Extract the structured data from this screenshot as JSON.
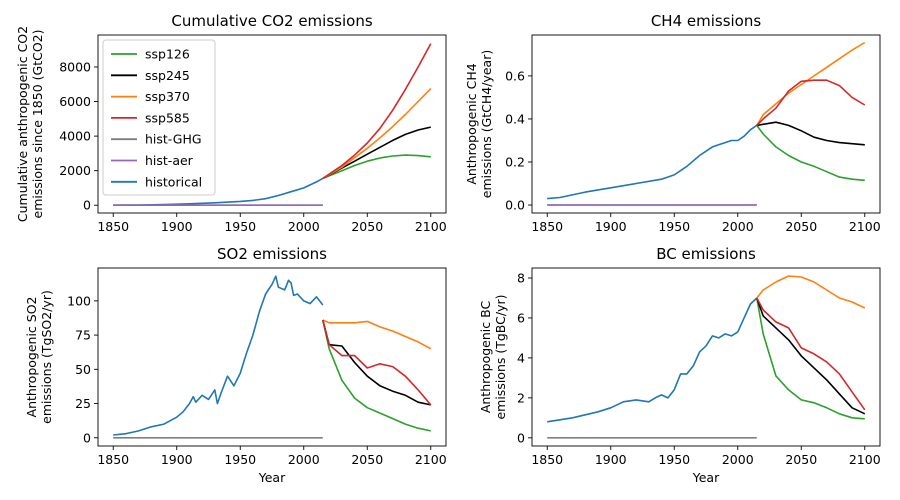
{
  "colors": {
    "ssp126": "#2ca02c",
    "ssp245": "#000000",
    "ssp370": "#ff7f0e",
    "ssp585": "#d62728",
    "hist-GHG": "#7f7f7f",
    "hist-aer": "#9467bd",
    "historical": "#1f77b4"
  },
  "legend": [
    "ssp126",
    "ssp245",
    "ssp370",
    "ssp585",
    "hist-GHG",
    "hist-aer",
    "historical"
  ],
  "chart_data": [
    {
      "id": "co2",
      "type": "line",
      "title": "Cumulative CO2 emissions",
      "xlabel": "",
      "ylabel": [
        "Cumulative anthropogenic CO2",
        "emissions since 1850 (GtCO2)"
      ],
      "xlim": [
        1838,
        2112
      ],
      "ylim": [
        -450,
        9850
      ],
      "xticks": [
        1850,
        1900,
        1950,
        2000,
        2050,
        2100
      ],
      "yticks": [
        0,
        2000,
        4000,
        6000,
        8000
      ],
      "legend_position": "top-left",
      "series": [
        {
          "name": "historical",
          "x": [
            1850,
            1870,
            1890,
            1910,
            1930,
            1950,
            1960,
            1970,
            1980,
            1990,
            2000,
            2010,
            2015
          ],
          "y": [
            0,
            15,
            40,
            85,
            140,
            220,
            280,
            380,
            560,
            780,
            1000,
            1350,
            1550
          ]
        },
        {
          "name": "hist-GHG",
          "x": [
            1850,
            2015
          ],
          "y": [
            0,
            0
          ]
        },
        {
          "name": "hist-aer",
          "x": [
            1850,
            2015
          ],
          "y": [
            0,
            0
          ]
        },
        {
          "name": "ssp126",
          "x": [
            2015,
            2030,
            2040,
            2050,
            2060,
            2070,
            2080,
            2090,
            2100
          ],
          "y": [
            1550,
            2000,
            2300,
            2550,
            2730,
            2850,
            2900,
            2870,
            2800
          ]
        },
        {
          "name": "ssp245",
          "x": [
            2015,
            2030,
            2040,
            2050,
            2060,
            2070,
            2080,
            2090,
            2100
          ],
          "y": [
            1550,
            2150,
            2550,
            2950,
            3350,
            3750,
            4100,
            4350,
            4520
          ]
        },
        {
          "name": "ssp370",
          "x": [
            2015,
            2030,
            2040,
            2050,
            2060,
            2070,
            2080,
            2090,
            2100
          ],
          "y": [
            1550,
            2200,
            2750,
            3300,
            3900,
            4550,
            5250,
            6000,
            6750
          ]
        },
        {
          "name": "ssp585",
          "x": [
            2015,
            2030,
            2040,
            2050,
            2060,
            2070,
            2080,
            2090,
            2100
          ],
          "y": [
            1550,
            2300,
            2900,
            3600,
            4450,
            5500,
            6700,
            8000,
            9350
          ]
        }
      ]
    },
    {
      "id": "ch4",
      "type": "line",
      "title": "CH4 emissions",
      "xlabel": "",
      "ylabel": [
        "Anthropogenic CH4",
        "emissions (GtCH4/year)"
      ],
      "xlim": [
        1838,
        2112
      ],
      "ylim": [
        -0.037,
        0.79
      ],
      "xticks": [
        1850,
        1900,
        1950,
        2000,
        2050,
        2100
      ],
      "yticks": [
        0.0,
        0.2,
        0.4,
        0.6
      ],
      "yticklabels": [
        "0.0",
        "0.2",
        "0.4",
        "0.6"
      ],
      "series": [
        {
          "name": "historical",
          "x": [
            1850,
            1860,
            1880,
            1900,
            1920,
            1940,
            1950,
            1960,
            1970,
            1975,
            1980,
            1985,
            1990,
            1995,
            2000,
            2005,
            2010,
            2015
          ],
          "y": [
            0.03,
            0.035,
            0.06,
            0.08,
            0.1,
            0.12,
            0.14,
            0.18,
            0.23,
            0.25,
            0.27,
            0.28,
            0.29,
            0.3,
            0.3,
            0.32,
            0.35,
            0.37
          ]
        },
        {
          "name": "hist-GHG",
          "x": [
            1850,
            2015
          ],
          "y": [
            0,
            0
          ]
        },
        {
          "name": "hist-aer",
          "x": [
            1850,
            2015
          ],
          "y": [
            0,
            0
          ]
        },
        {
          "name": "ssp126",
          "x": [
            2015,
            2020,
            2030,
            2040,
            2050,
            2060,
            2070,
            2080,
            2090,
            2100
          ],
          "y": [
            0.37,
            0.33,
            0.27,
            0.23,
            0.2,
            0.18,
            0.155,
            0.13,
            0.12,
            0.115
          ]
        },
        {
          "name": "ssp245",
          "x": [
            2015,
            2020,
            2030,
            2040,
            2050,
            2060,
            2070,
            2080,
            2090,
            2100
          ],
          "y": [
            0.37,
            0.375,
            0.385,
            0.37,
            0.345,
            0.315,
            0.3,
            0.29,
            0.285,
            0.28
          ]
        },
        {
          "name": "ssp370",
          "x": [
            2015,
            2020,
            2030,
            2040,
            2050,
            2060,
            2070,
            2080,
            2090,
            2100
          ],
          "y": [
            0.37,
            0.42,
            0.47,
            0.52,
            0.56,
            0.6,
            0.64,
            0.68,
            0.72,
            0.755
          ]
        },
        {
          "name": "ssp585",
          "x": [
            2015,
            2020,
            2030,
            2040,
            2050,
            2060,
            2070,
            2080,
            2090,
            2100
          ],
          "y": [
            0.37,
            0.4,
            0.45,
            0.53,
            0.575,
            0.58,
            0.58,
            0.555,
            0.5,
            0.465
          ]
        }
      ]
    },
    {
      "id": "so2",
      "type": "line",
      "title": "SO2 emissions",
      "xlabel": "Year",
      "ylabel": [
        "Anthropogenic SO2",
        "emissions (TgSO2/yr)"
      ],
      "xlim": [
        1838,
        2112
      ],
      "ylim": [
        -6,
        124
      ],
      "xticks": [
        1850,
        1900,
        1950,
        2000,
        2050,
        2100
      ],
      "yticks": [
        0,
        25,
        50,
        75,
        100
      ],
      "series": [
        {
          "name": "historical",
          "x": [
            1850,
            1860,
            1870,
            1880,
            1890,
            1900,
            1905,
            1910,
            1913,
            1915,
            1920,
            1925,
            1930,
            1932,
            1935,
            1940,
            1945,
            1950,
            1955,
            1960,
            1965,
            1970,
            1975,
            1978,
            1980,
            1985,
            1988,
            1990,
            1992,
            1995,
            2000,
            2005,
            2010,
            2015
          ],
          "y": [
            2,
            3,
            5,
            8,
            10,
            15,
            19,
            25,
            30,
            26,
            31,
            28,
            35,
            25,
            33,
            45,
            38,
            47,
            62,
            75,
            92,
            105,
            112,
            118,
            110,
            108,
            115,
            113,
            104,
            105,
            100,
            98,
            103,
            97
          ]
        },
        {
          "name": "hist-GHG",
          "x": [
            1850,
            2015
          ],
          "y": [
            0,
            0
          ]
        },
        {
          "name": "ssp126",
          "x": [
            2015,
            2020,
            2030,
            2040,
            2050,
            2060,
            2070,
            2080,
            2090,
            2100
          ],
          "y": [
            86,
            65,
            42,
            29,
            22,
            18,
            14,
            10,
            7,
            5
          ]
        },
        {
          "name": "ssp245",
          "x": [
            2015,
            2020,
            2030,
            2040,
            2050,
            2060,
            2070,
            2080,
            2090,
            2100
          ],
          "y": [
            86,
            68,
            67,
            55,
            45,
            38,
            34,
            31,
            26,
            24
          ]
        },
        {
          "name": "ssp370",
          "x": [
            2015,
            2020,
            2030,
            2040,
            2050,
            2060,
            2070,
            2080,
            2090,
            2100
          ],
          "y": [
            86,
            84,
            84,
            84,
            85,
            81,
            78,
            74,
            70,
            65
          ]
        },
        {
          "name": "ssp585",
          "x": [
            2015,
            2020,
            2030,
            2040,
            2050,
            2060,
            2070,
            2080,
            2090,
            2100
          ],
          "y": [
            86,
            68,
            60,
            60,
            51,
            54,
            52,
            45,
            35,
            24
          ]
        }
      ]
    },
    {
      "id": "bc",
      "type": "line",
      "title": "BC emissions",
      "xlabel": "Year",
      "ylabel": [
        "Anthropogenic BC",
        "emissions (TgBC/yr)"
      ],
      "xlim": [
        1838,
        2112
      ],
      "ylim": [
        -0.41,
        8.5
      ],
      "xticks": [
        1850,
        1900,
        1950,
        2000,
        2050,
        2100
      ],
      "yticks": [
        0,
        2,
        4,
        6,
        8
      ],
      "series": [
        {
          "name": "historical",
          "x": [
            1850,
            1860,
            1870,
            1880,
            1890,
            1900,
            1910,
            1920,
            1930,
            1935,
            1940,
            1945,
            1950,
            1955,
            1960,
            1965,
            1970,
            1975,
            1980,
            1985,
            1990,
            1995,
            2000,
            2005,
            2010,
            2015
          ],
          "y": [
            0.8,
            0.9,
            1.0,
            1.15,
            1.3,
            1.5,
            1.8,
            1.9,
            1.8,
            2.0,
            2.15,
            2.0,
            2.4,
            3.2,
            3.2,
            3.6,
            4.3,
            4.6,
            5.1,
            5.0,
            5.2,
            5.1,
            5.3,
            6.0,
            6.7,
            7.0
          ]
        },
        {
          "name": "hist-GHG",
          "x": [
            1850,
            2015
          ],
          "y": [
            0,
            0
          ]
        },
        {
          "name": "ssp126",
          "x": [
            2015,
            2020,
            2030,
            2040,
            2050,
            2060,
            2070,
            2080,
            2090,
            2100
          ],
          "y": [
            7.0,
            5.2,
            3.1,
            2.4,
            1.9,
            1.75,
            1.5,
            1.2,
            1.0,
            0.95
          ]
        },
        {
          "name": "ssp245",
          "x": [
            2015,
            2020,
            2030,
            2040,
            2050,
            2060,
            2070,
            2080,
            2090,
            2100
          ],
          "y": [
            7.0,
            6.1,
            5.5,
            4.9,
            4.1,
            3.5,
            2.9,
            2.2,
            1.5,
            1.2
          ]
        },
        {
          "name": "ssp370",
          "x": [
            2015,
            2020,
            2030,
            2040,
            2050,
            2060,
            2070,
            2080,
            2090,
            2100
          ],
          "y": [
            7.0,
            7.4,
            7.8,
            8.1,
            8.05,
            7.8,
            7.4,
            7.0,
            6.8,
            6.5
          ]
        },
        {
          "name": "ssp585",
          "x": [
            2015,
            2020,
            2030,
            2040,
            2050,
            2060,
            2070,
            2080,
            2090,
            2100
          ],
          "y": [
            7.0,
            6.4,
            5.8,
            5.5,
            4.5,
            4.2,
            3.8,
            3.2,
            2.3,
            1.4
          ]
        }
      ]
    }
  ]
}
